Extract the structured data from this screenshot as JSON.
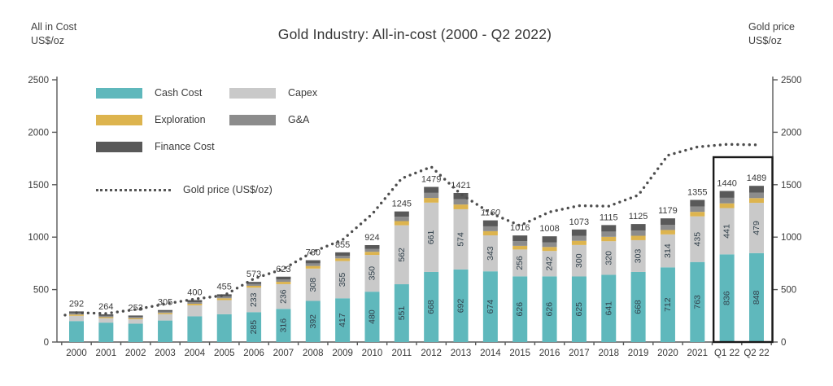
{
  "title": "Gold Industry: All-in-cost (2000 - Q2 2022)",
  "left_axis": {
    "title": [
      "All in Cost",
      "US$/oz"
    ],
    "ticks": [
      0,
      500,
      1000,
      1500,
      2000,
      2500
    ]
  },
  "right_axis": {
    "title": [
      "Gold price",
      "US$/oz"
    ],
    "ticks": [
      0,
      500,
      1000,
      1500,
      2000,
      2500
    ]
  },
  "legend": {
    "items": [
      {
        "label": "Cash Cost",
        "key": "cash_cost"
      },
      {
        "label": "Capex",
        "key": "capex"
      },
      {
        "label": "Exploration",
        "key": "exploration"
      },
      {
        "label": "G&A",
        "key": "ga"
      },
      {
        "label": "Finance Cost",
        "key": "finance_cost"
      }
    ],
    "line_label": "Gold price (US$/oz)"
  },
  "colors": {
    "cash_cost": "#5FB8BC",
    "capex": "#C9C9C9",
    "exploration": "#DDB44E",
    "ga": "#8C8C8C",
    "finance_cost": "#595959",
    "gold_line": "#4D4D4D",
    "axis": "#595959",
    "text": "#3A3A3A",
    "bar_label": "#31404B",
    "highlight_box": "#1A1A1A"
  },
  "chart_data": {
    "type": "bar",
    "subtype": "stacked-bars-with-dotted-line-overlay",
    "title": "Gold Industry: All-in-cost (2000 - Q2 2022)",
    "ylim": [
      0,
      2500
    ],
    "grid": false,
    "legend_position": "top-left-inside",
    "categories": [
      "2000",
      "2001",
      "2002",
      "2003",
      "2004",
      "2005",
      "2006",
      "2007",
      "2008",
      "2009",
      "2010",
      "2011",
      "2012",
      "2013",
      "2014",
      "2015",
      "2016",
      "2017",
      "2018",
      "2019",
      "2020",
      "2021",
      "Q1 22",
      "Q2 22"
    ],
    "series": [
      {
        "name": "Cash Cost",
        "key": "cash_cost",
        "values": [
          200,
          185,
          175,
          205,
          245,
          265,
          285,
          316,
          392,
          417,
          480,
          551,
          668,
          692,
          674,
          626,
          626,
          625,
          641,
          668,
          712,
          763,
          836,
          848
        ],
        "printed_labels": [
          null,
          null,
          null,
          null,
          null,
          null,
          "285",
          "316",
          "392",
          "417",
          "480",
          "551",
          "668",
          "692",
          "674",
          "626",
          "626",
          "625",
          "641",
          "668",
          "712",
          "763",
          "836",
          "848"
        ]
      },
      {
        "name": "Capex",
        "key": "capex",
        "values": [
          50,
          42,
          42,
          60,
          105,
          135,
          233,
          236,
          308,
          355,
          350,
          562,
          661,
          574,
          343,
          256,
          242,
          300,
          320,
          303,
          314,
          435,
          441,
          479
        ],
        "printed_labels": [
          null,
          null,
          null,
          null,
          null,
          null,
          "233",
          "236",
          "308",
          "355",
          "350",
          "562",
          "661",
          "574",
          "343",
          "256",
          "242",
          "300",
          "320",
          "303",
          "314",
          "435",
          "441",
          "479"
        ]
      },
      {
        "name": "Exploration",
        "key": "exploration",
        "values": [
          12,
          10,
          10,
          12,
          15,
          17,
          18,
          22,
          25,
          25,
          30,
          40,
          45,
          45,
          40,
          35,
          38,
          40,
          42,
          42,
          42,
          43,
          45,
          45
        ],
        "printed_labels": null
      },
      {
        "name": "G&A",
        "key": "ga",
        "values": [
          12,
          12,
          11,
          12,
          15,
          16,
          17,
          22,
          25,
          26,
          29,
          42,
          48,
          50,
          46,
          44,
          45,
          48,
          50,
          50,
          50,
          51,
          53,
          52
        ],
        "printed_labels": null
      },
      {
        "name": "Finance Cost",
        "key": "finance_cost",
        "values": [
          18,
          15,
          15,
          16,
          20,
          22,
          20,
          27,
          30,
          32,
          35,
          50,
          57,
          60,
          57,
          55,
          57,
          60,
          62,
          62,
          61,
          63,
          65,
          65
        ],
        "printed_labels": null
      }
    ],
    "totals": [
      292,
      264,
      253,
      305,
      400,
      455,
      573,
      623,
      780,
      855,
      924,
      1245,
      1479,
      1421,
      1160,
      1016,
      1008,
      1073,
      1115,
      1125,
      1179,
      1355,
      1440,
      1489
    ],
    "italic_total_categories": [
      "2014"
    ],
    "line_series": {
      "name": "Gold price (US$/oz)",
      "values": [
        280,
        272,
        310,
        363,
        410,
        445,
        604,
        697,
        860,
        975,
        1220,
        1560,
        1670,
        1410,
        1230,
        1110,
        1240,
        1300,
        1295,
        1400,
        1780,
        1860,
        1885,
        1880
      ]
    },
    "highlight_categories": [
      "Q1 22",
      "Q2 22"
    ]
  }
}
